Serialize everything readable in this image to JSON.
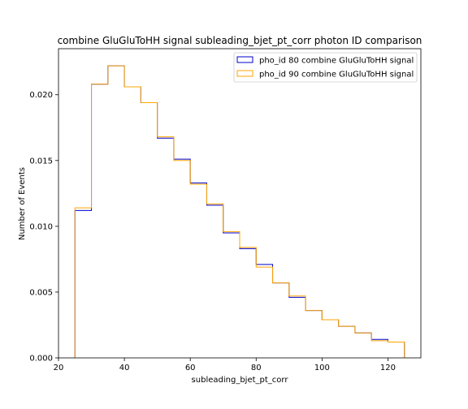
{
  "chart_data": {
    "type": "step-histogram",
    "title": "combine GluGluToHH signal subleading_bjet_pt_corr photon ID comparison",
    "xlabel": "subleading_bjet_pt_corr",
    "ylabel": "Number of Events",
    "xlim": [
      20,
      130
    ],
    "ylim": [
      0,
      0.0235
    ],
    "xticks": [
      20,
      40,
      60,
      80,
      100,
      120
    ],
    "yticks": [
      "0.000",
      "0.005",
      "0.010",
      "0.015",
      "0.020"
    ],
    "grid": false,
    "legend_position": "top-right",
    "bin_edges": [
      25,
      30,
      35,
      40,
      45,
      50,
      55,
      60,
      65,
      70,
      75,
      80,
      85,
      90,
      95,
      100,
      105,
      110,
      115,
      120,
      125
    ],
    "series": [
      {
        "name": "pho_id 80 combine GluGluToHH signal",
        "color": "#0000cc",
        "values": [
          0.0112,
          0.0208,
          0.0222,
          0.0206,
          0.0194,
          0.0167,
          0.0151,
          0.0133,
          0.0116,
          0.0095,
          0.0083,
          0.0071,
          0.0057,
          0.0046,
          0.0036,
          0.0029,
          0.0024,
          0.0019,
          0.0014,
          0.0012
        ]
      },
      {
        "name": "pho_id 90 combine GluGluToHH signal",
        "color": "#ffa500",
        "values": [
          0.0114,
          0.0208,
          0.0222,
          0.0206,
          0.0194,
          0.0168,
          0.015,
          0.0132,
          0.0117,
          0.0096,
          0.0084,
          0.0069,
          0.0057,
          0.0047,
          0.0036,
          0.0029,
          0.0024,
          0.0019,
          0.0013,
          0.0012
        ]
      }
    ]
  }
}
